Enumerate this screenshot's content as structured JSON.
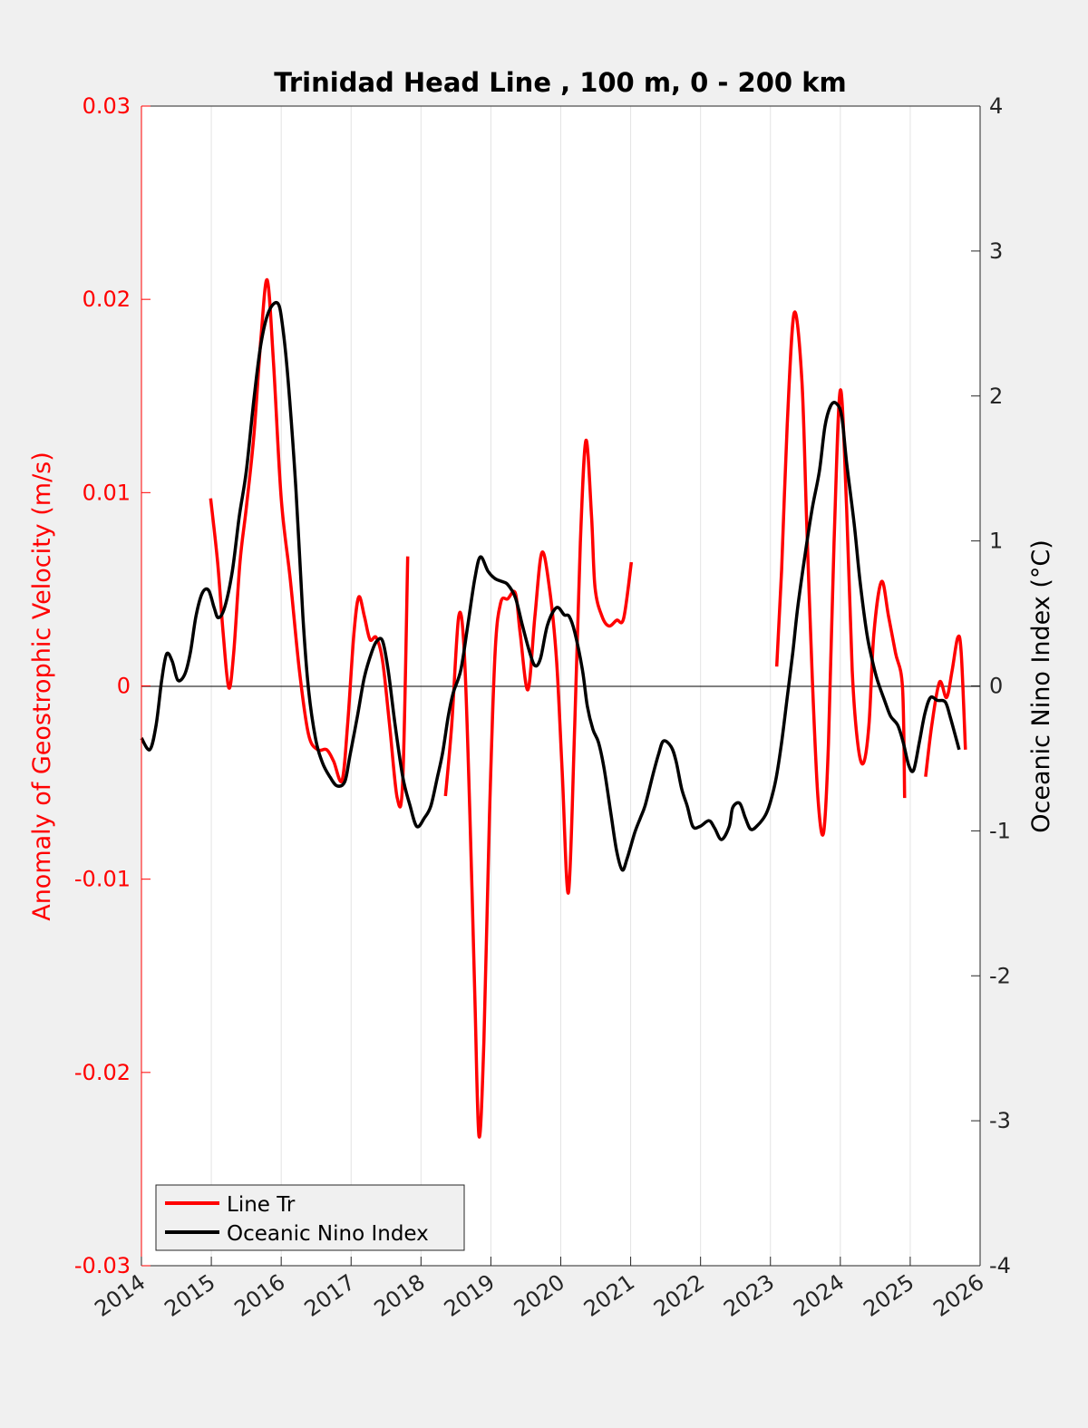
{
  "chart_data": {
    "type": "line",
    "title": "Trinidad Head Line , 100 m, 0 - 200 km",
    "xlabel": "",
    "ylabel_left": "Anomaly of Geostrophic Velocity (m/s)",
    "ylabel_right": "Oceanic Nino Index (°C)",
    "xlim": [
      2014,
      2026
    ],
    "ylim_left": [
      -0.03,
      0.03
    ],
    "ylim_right": [
      -4,
      4
    ],
    "x_ticks": [
      "2014",
      "2015",
      "2016",
      "2017",
      "2018",
      "2019",
      "2020",
      "2021",
      "2022",
      "2023",
      "2024",
      "2025",
      "2026"
    ],
    "y_ticks_left": [
      "-0.03",
      "-0.02",
      "-0.01",
      "0",
      "0.01",
      "0.02",
      "0.03"
    ],
    "y_ticks_right": [
      "-4",
      "-3",
      "-2",
      "-1",
      "0",
      "1",
      "2",
      "3",
      "4"
    ],
    "grid": "vertical",
    "legend_placement": "bottom-left",
    "colors": {
      "left": "#ff0000",
      "right": "#000000"
    },
    "series": [
      {
        "name": "Line Tr",
        "axis": "left",
        "color": "#ff0000",
        "segments": [
          [
            [
              2014.99,
              0.0097
            ],
            [
              2015.09,
              0.0064
            ],
            [
              2015.17,
              0.0027
            ],
            [
              2015.25,
              -0.0001
            ],
            [
              2015.32,
              0.0017
            ],
            [
              2015.41,
              0.0064
            ],
            [
              2015.5,
              0.0092
            ],
            [
              2015.61,
              0.013
            ],
            [
              2015.71,
              0.018
            ],
            [
              2015.8,
              0.021
            ],
            [
              2015.89,
              0.0167
            ],
            [
              2016.0,
              0.0097
            ],
            [
              2016.13,
              0.0055
            ],
            [
              2016.26,
              0.0008
            ],
            [
              2016.39,
              -0.0025
            ],
            [
              2016.52,
              -0.0033
            ],
            [
              2016.65,
              -0.0033
            ],
            [
              2016.75,
              -0.0039
            ],
            [
              2016.87,
              -0.0049
            ],
            [
              2016.95,
              -0.002
            ],
            [
              2017.04,
              0.0027
            ],
            [
              2017.11,
              0.0046
            ],
            [
              2017.19,
              0.0036
            ],
            [
              2017.27,
              0.0024
            ],
            [
              2017.36,
              0.0025
            ],
            [
              2017.45,
              0.0013
            ],
            [
              2017.55,
              -0.002
            ],
            [
              2017.66,
              -0.0058
            ],
            [
              2017.74,
              -0.0048
            ],
            [
              2017.81,
              0.0067
            ]
          ],
          [
            [
              2018.35,
              -0.0057
            ],
            [
              2018.44,
              -0.002
            ],
            [
              2018.54,
              0.0036
            ],
            [
              2018.62,
              0.0017
            ],
            [
              2018.7,
              -0.0067
            ],
            [
              2018.77,
              -0.016
            ],
            [
              2018.83,
              -0.0233
            ],
            [
              2018.9,
              -0.0184
            ],
            [
              2018.98,
              -0.0067
            ],
            [
              2019.06,
              0.0017
            ],
            [
              2019.14,
              0.0043
            ],
            [
              2019.24,
              0.0045
            ],
            [
              2019.35,
              0.0048
            ],
            [
              2019.42,
              0.0027
            ],
            [
              2019.53,
              -0.0002
            ],
            [
              2019.63,
              0.0036
            ],
            [
              2019.73,
              0.0069
            ],
            [
              2019.84,
              0.005
            ],
            [
              2019.94,
              0.0013
            ],
            [
              2020.02,
              -0.0044
            ],
            [
              2020.11,
              -0.0107
            ],
            [
              2020.2,
              -0.002
            ],
            [
              2020.28,
              0.0074
            ],
            [
              2020.36,
              0.0127
            ],
            [
              2020.44,
              0.0088
            ],
            [
              2020.49,
              0.0051
            ],
            [
              2020.59,
              0.0036
            ],
            [
              2020.69,
              0.0031
            ],
            [
              2020.8,
              0.0034
            ],
            [
              2020.9,
              0.0035
            ],
            [
              2021.01,
              0.0064
            ]
          ],
          [
            [
              2023.09,
              0.001
            ],
            [
              2023.16,
              0.006
            ],
            [
              2023.24,
              0.0135
            ],
            [
              2023.34,
              0.0193
            ],
            [
              2023.45,
              0.0158
            ],
            [
              2023.52,
              0.0083
            ],
            [
              2023.6,
              0.0003
            ],
            [
              2023.68,
              -0.0058
            ],
            [
              2023.76,
              -0.0076
            ],
            [
              2023.83,
              -0.003
            ],
            [
              2023.91,
              0.0074
            ],
            [
              2024.0,
              0.0153
            ],
            [
              2024.09,
              0.0092
            ],
            [
              2024.17,
              0.0008
            ],
            [
              2024.25,
              -0.003
            ],
            [
              2024.33,
              -0.004
            ],
            [
              2024.41,
              -0.002
            ],
            [
              2024.48,
              0.0027
            ],
            [
              2024.59,
              0.0054
            ],
            [
              2024.69,
              0.0036
            ],
            [
              2024.79,
              0.0017
            ],
            [
              2024.89,
              -0.0001
            ],
            [
              2024.92,
              -0.0058
            ]
          ],
          [
            [
              2025.22,
              -0.0047
            ],
            [
              2025.31,
              -0.002
            ],
            [
              2025.42,
              0.0002
            ],
            [
              2025.52,
              -0.0006
            ],
            [
              2025.6,
              0.0008
            ],
            [
              2025.68,
              0.0025
            ],
            [
              2025.73,
              0.0017
            ],
            [
              2025.79,
              -0.0033
            ]
          ]
        ]
      },
      {
        "name": "Oceanic Nino Index",
        "axis": "right",
        "color": "#000000",
        "segments": [
          [
            [
              2014.0,
              -0.36
            ],
            [
              2014.12,
              -0.44
            ],
            [
              2014.21,
              -0.27
            ],
            [
              2014.29,
              0.04
            ],
            [
              2014.36,
              0.22
            ],
            [
              2014.44,
              0.17
            ],
            [
              2014.52,
              0.04
            ],
            [
              2014.62,
              0.08
            ],
            [
              2014.7,
              0.23
            ],
            [
              2014.78,
              0.48
            ],
            [
              2014.87,
              0.64
            ],
            [
              2014.96,
              0.66
            ],
            [
              2015.04,
              0.54
            ],
            [
              2015.1,
              0.47
            ],
            [
              2015.19,
              0.54
            ],
            [
              2015.3,
              0.79
            ],
            [
              2015.4,
              1.17
            ],
            [
              2015.5,
              1.48
            ],
            [
              2015.61,
              1.98
            ],
            [
              2015.71,
              2.36
            ],
            [
              2015.82,
              2.58
            ],
            [
              2015.95,
              2.64
            ],
            [
              2016.02,
              2.48
            ],
            [
              2016.1,
              2.1
            ],
            [
              2016.21,
              1.36
            ],
            [
              2016.31,
              0.48
            ],
            [
              2016.39,
              -0.02
            ],
            [
              2016.49,
              -0.36
            ],
            [
              2016.59,
              -0.53
            ],
            [
              2016.7,
              -0.63
            ],
            [
              2016.8,
              -0.69
            ],
            [
              2016.91,
              -0.66
            ],
            [
              2016.98,
              -0.49
            ],
            [
              2017.09,
              -0.21
            ],
            [
              2017.19,
              0.06
            ],
            [
              2017.3,
              0.24
            ],
            [
              2017.37,
              0.31
            ],
            [
              2017.45,
              0.31
            ],
            [
              2017.53,
              0.11
            ],
            [
              2017.63,
              -0.27
            ],
            [
              2017.74,
              -0.63
            ],
            [
              2017.84,
              -0.82
            ],
            [
              2017.94,
              -0.97
            ],
            [
              2018.05,
              -0.91
            ],
            [
              2018.14,
              -0.83
            ],
            [
              2018.23,
              -0.64
            ],
            [
              2018.31,
              -0.46
            ],
            [
              2018.39,
              -0.21
            ],
            [
              2018.46,
              -0.05
            ],
            [
              2018.57,
              0.11
            ],
            [
              2018.67,
              0.42
            ],
            [
              2018.77,
              0.74
            ],
            [
              2018.85,
              0.89
            ],
            [
              2018.96,
              0.79
            ],
            [
              2019.06,
              0.74
            ],
            [
              2019.16,
              0.72
            ],
            [
              2019.24,
              0.7
            ],
            [
              2019.35,
              0.61
            ],
            [
              2019.45,
              0.42
            ],
            [
              2019.55,
              0.24
            ],
            [
              2019.63,
              0.14
            ],
            [
              2019.71,
              0.19
            ],
            [
              2019.81,
              0.42
            ],
            [
              2019.94,
              0.54
            ],
            [
              2020.05,
              0.49
            ],
            [
              2020.12,
              0.48
            ],
            [
              2020.2,
              0.37
            ],
            [
              2020.31,
              0.11
            ],
            [
              2020.38,
              -0.14
            ],
            [
              2020.46,
              -0.3
            ],
            [
              2020.54,
              -0.39
            ],
            [
              2020.62,
              -0.57
            ],
            [
              2020.72,
              -0.89
            ],
            [
              2020.8,
              -1.14
            ],
            [
              2020.88,
              -1.27
            ],
            [
              2020.95,
              -1.19
            ],
            [
              2021.06,
              -1.01
            ],
            [
              2021.14,
              -0.91
            ],
            [
              2021.21,
              -0.82
            ],
            [
              2021.32,
              -0.61
            ],
            [
              2021.4,
              -0.47
            ],
            [
              2021.47,
              -0.38
            ],
            [
              2021.58,
              -0.42
            ],
            [
              2021.65,
              -0.52
            ],
            [
              2021.73,
              -0.71
            ],
            [
              2021.81,
              -0.83
            ],
            [
              2021.89,
              -0.97
            ],
            [
              2021.99,
              -0.97
            ],
            [
              2022.12,
              -0.93
            ],
            [
              2022.2,
              -0.98
            ],
            [
              2022.3,
              -1.06
            ],
            [
              2022.41,
              -0.97
            ],
            [
              2022.46,
              -0.84
            ],
            [
              2022.56,
              -0.81
            ],
            [
              2022.64,
              -0.91
            ],
            [
              2022.72,
              -0.99
            ],
            [
              2022.82,
              -0.96
            ],
            [
              2022.93,
              -0.89
            ],
            [
              2023.0,
              -0.8
            ],
            [
              2023.08,
              -0.64
            ],
            [
              2023.16,
              -0.39
            ],
            [
              2023.24,
              -0.08
            ],
            [
              2023.32,
              0.23
            ],
            [
              2023.39,
              0.54
            ],
            [
              2023.5,
              0.92
            ],
            [
              2023.6,
              1.23
            ],
            [
              2023.7,
              1.48
            ],
            [
              2023.78,
              1.79
            ],
            [
              2023.86,
              1.93
            ],
            [
              2023.94,
              1.95
            ],
            [
              2024.02,
              1.86
            ],
            [
              2024.09,
              1.54
            ],
            [
              2024.2,
              1.11
            ],
            [
              2024.28,
              0.73
            ],
            [
              2024.38,
              0.36
            ],
            [
              2024.46,
              0.17
            ],
            [
              2024.53,
              0.04
            ],
            [
              2024.64,
              -0.11
            ],
            [
              2024.72,
              -0.21
            ],
            [
              2024.82,
              -0.27
            ],
            [
              2024.9,
              -0.39
            ],
            [
              2024.98,
              -0.55
            ],
            [
              2025.05,
              -0.58
            ],
            [
              2025.13,
              -0.39
            ],
            [
              2025.21,
              -0.19
            ],
            [
              2025.29,
              -0.08
            ],
            [
              2025.39,
              -0.1
            ],
            [
              2025.5,
              -0.11
            ],
            [
              2025.57,
              -0.21
            ],
            [
              2025.7,
              -0.44
            ]
          ]
        ]
      }
    ]
  }
}
